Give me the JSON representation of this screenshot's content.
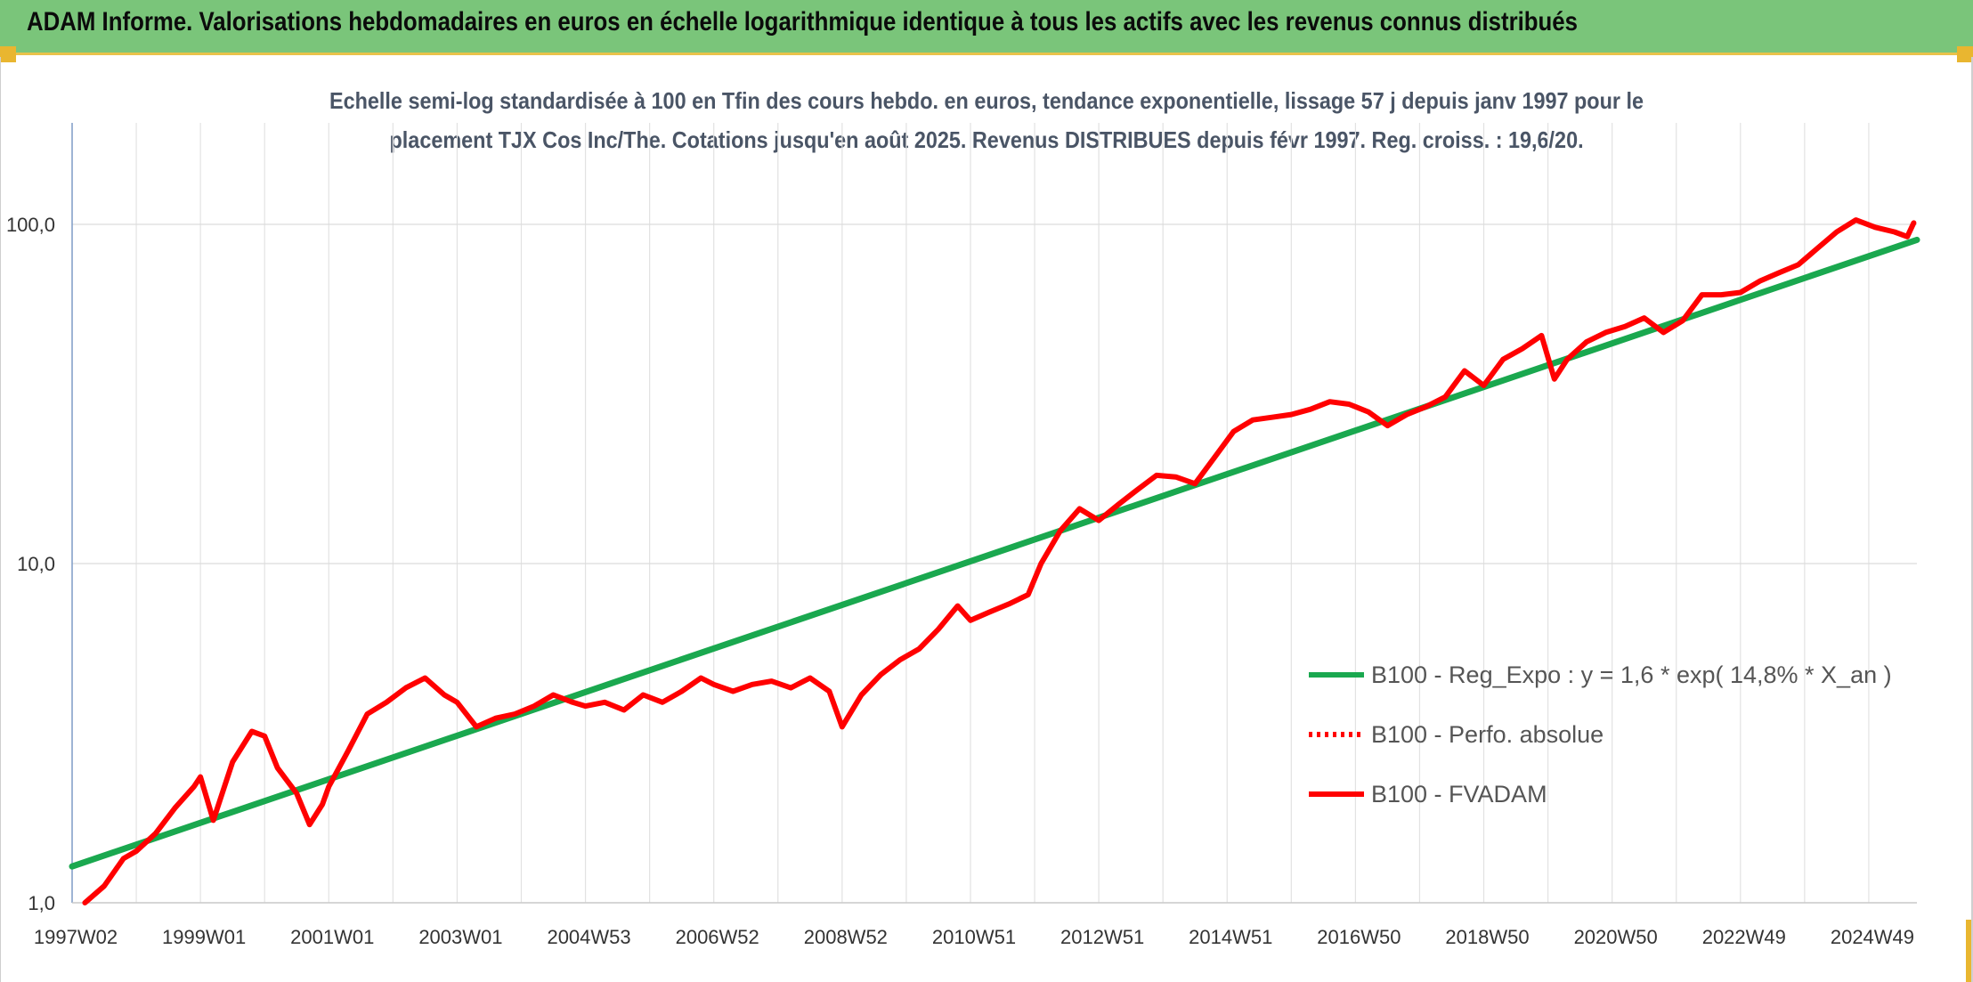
{
  "header": {
    "title": "ADAM Informe. Valorisations hebdomadaires en euros en échelle logarithmique identique à tous les actifs avec les revenus connus distribués",
    "background": "#7ac57a"
  },
  "chart_data": {
    "type": "line",
    "subtitle_line1": "Echelle semi-log standardisée à 100 en Tfin des cours hebdo. en euros, tendance exponentielle, lissage 57 j depuis janv 1997 pour le",
    "subtitle_line2": "placement TJX Cos Inc/The. Cotations jusqu'en août 2025. Revenus DISTRIBUES depuis févr 1997. Reg. croiss. : 19,6/20.",
    "y_scale": "log",
    "ylim": [
      1,
      200
    ],
    "y_ticks": [
      {
        "value": 1,
        "label": "1,0"
      },
      {
        "value": 10,
        "label": "10,0"
      },
      {
        "value": 100,
        "label": "100,0"
      }
    ],
    "xlim": [
      1997.0,
      2025.75
    ],
    "x_ticks": [
      {
        "value": 1997.0,
        "label": "1997W02"
      },
      {
        "value": 1999.0,
        "label": "1999W01"
      },
      {
        "value": 2001.0,
        "label": "2001W01"
      },
      {
        "value": 2003.0,
        "label": "2003W01"
      },
      {
        "value": 2005.0,
        "label": "2004W53"
      },
      {
        "value": 2007.0,
        "label": "2006W52"
      },
      {
        "value": 2009.0,
        "label": "2008W52"
      },
      {
        "value": 2011.0,
        "label": "2010W51"
      },
      {
        "value": 2013.0,
        "label": "2012W51"
      },
      {
        "value": 2015.0,
        "label": "2014W51"
      },
      {
        "value": 2017.0,
        "label": "2016W50"
      },
      {
        "value": 2019.0,
        "label": "2018W50"
      },
      {
        "value": 2021.0,
        "label": "2020W50"
      },
      {
        "value": 2023.0,
        "label": "2022W49"
      },
      {
        "value": 2025.0,
        "label": "2024W49"
      }
    ],
    "grid": "vertical and horizontal",
    "legend_position": "lower-right",
    "series": [
      {
        "name": "B100 - Reg_Expo : y = 1,6 * exp( 14,8% *  X_an )",
        "color": "#1aa84f",
        "style": "solid",
        "x": [
          1997.0,
          2025.75
        ],
        "y": [
          1.28,
          90
        ]
      },
      {
        "name": "B100 - Perfo. absolue",
        "color": "#ff0000",
        "style": "dotted",
        "x": [],
        "y": []
      },
      {
        "name": "B100 - FVADAM",
        "color": "#ff0000",
        "style": "solid",
        "x": [
          1997.2,
          1997.5,
          1997.8,
          1998.0,
          1998.3,
          1998.6,
          1998.9,
          1999.0,
          1999.2,
          1999.5,
          1999.8,
          2000.0,
          2000.2,
          2000.5,
          2000.7,
          2000.9,
          2001.0,
          2001.3,
          2001.6,
          2001.9,
          2002.2,
          2002.5,
          2002.8,
          2003.0,
          2003.3,
          2003.6,
          2003.9,
          2004.2,
          2004.5,
          2004.8,
          2005.0,
          2005.3,
          2005.6,
          2005.9,
          2006.2,
          2006.5,
          2006.8,
          2007.0,
          2007.3,
          2007.6,
          2007.9,
          2008.2,
          2008.5,
          2008.8,
          2009.0,
          2009.3,
          2009.6,
          2009.9,
          2010.2,
          2010.5,
          2010.8,
          2011.0,
          2011.3,
          2011.6,
          2011.9,
          2012.1,
          2012.4,
          2012.7,
          2013.0,
          2013.3,
          2013.6,
          2013.9,
          2014.2,
          2014.5,
          2014.8,
          2015.1,
          2015.4,
          2015.7,
          2016.0,
          2016.3,
          2016.6,
          2016.9,
          2017.2,
          2017.5,
          2017.8,
          2018.1,
          2018.4,
          2018.7,
          2019.0,
          2019.3,
          2019.6,
          2019.9,
          2020.1,
          2020.3,
          2020.6,
          2020.9,
          2021.2,
          2021.5,
          2021.8,
          2022.1,
          2022.4,
          2022.7,
          2023.0,
          2023.3,
          2023.6,
          2023.9,
          2024.2,
          2024.5,
          2024.8,
          2025.1,
          2025.4,
          2025.6,
          2025.7
        ],
        "y": [
          1.0,
          1.12,
          1.35,
          1.42,
          1.6,
          1.9,
          2.2,
          2.35,
          1.75,
          2.6,
          3.2,
          3.1,
          2.5,
          2.1,
          1.7,
          1.95,
          2.2,
          2.8,
          3.6,
          3.9,
          4.3,
          4.6,
          4.1,
          3.9,
          3.3,
          3.5,
          3.6,
          3.8,
          4.1,
          3.9,
          3.8,
          3.9,
          3.7,
          4.1,
          3.9,
          4.2,
          4.6,
          4.4,
          4.2,
          4.4,
          4.5,
          4.3,
          4.6,
          4.2,
          3.3,
          4.1,
          4.7,
          5.2,
          5.6,
          6.4,
          7.5,
          6.8,
          7.2,
          7.6,
          8.1,
          10.0,
          12.5,
          14.5,
          13.4,
          14.9,
          16.5,
          18.2,
          18.0,
          17.2,
          20.5,
          24.5,
          26.5,
          27.0,
          27.5,
          28.5,
          30.0,
          29.5,
          28.0,
          25.5,
          27.5,
          29.0,
          31.0,
          37.0,
          33.5,
          40.0,
          43.0,
          47.0,
          35.0,
          40.0,
          45.0,
          48.0,
          50.0,
          53.0,
          48.0,
          52.0,
          62.0,
          62.0,
          63.0,
          68.0,
          72.0,
          76.0,
          85.0,
          95.0,
          103.0,
          98.0,
          95.0,
          92.0,
          101.0
        ]
      }
    ]
  }
}
